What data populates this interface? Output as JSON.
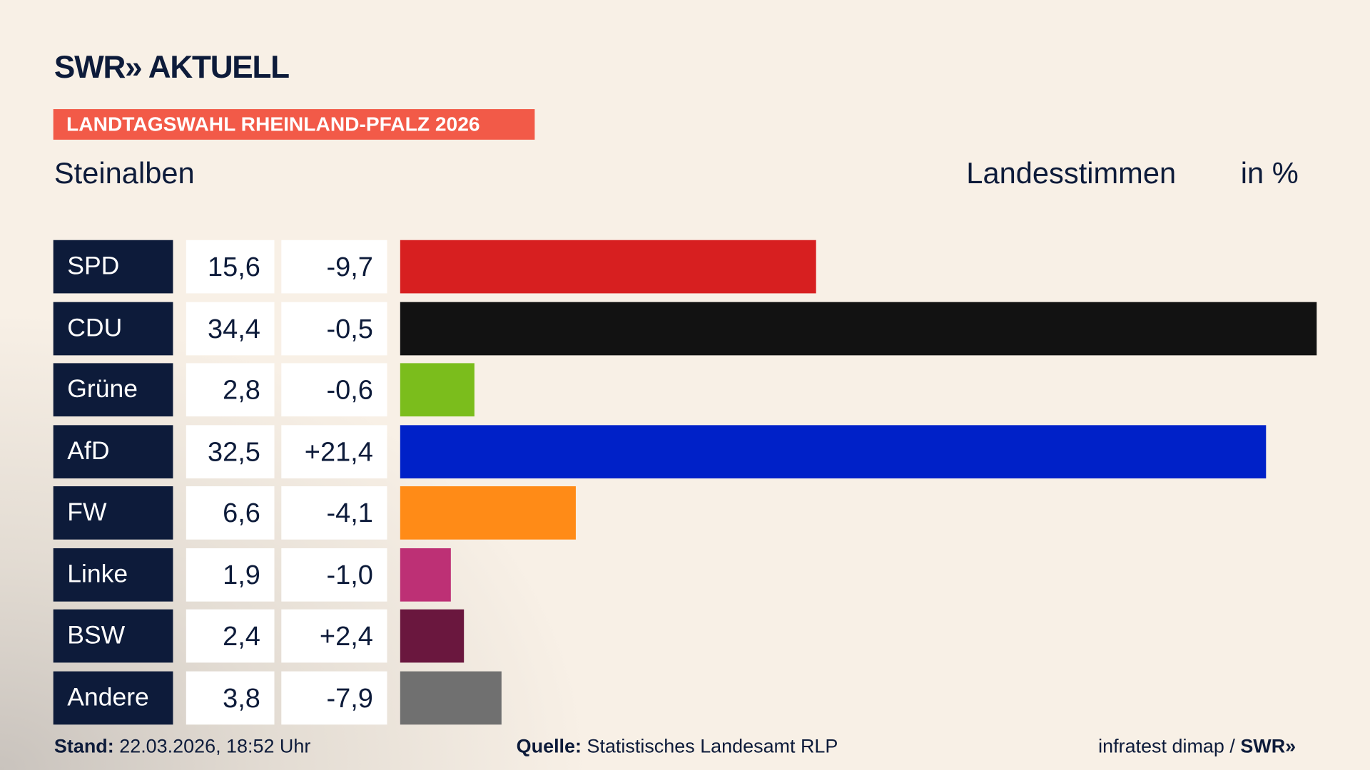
{
  "header": {
    "logo": "SWR» AKTUELL",
    "tag": "LANDTAGSWAHL RHEINLAND-PFALZ 2026",
    "region": "Steinalben",
    "vote_type": "Landesstimmen",
    "unit": "in %"
  },
  "chart_data": {
    "type": "bar",
    "orientation": "horizontal",
    "categories": [
      "SPD",
      "CDU",
      "Grüne",
      "AfD",
      "FW",
      "Linke",
      "BSW",
      "Andere"
    ],
    "values": [
      15.6,
      34.4,
      2.8,
      32.5,
      6.6,
      1.9,
      2.4,
      3.8
    ],
    "value_labels": [
      "15,6",
      "34,4",
      "2,8",
      "32,5",
      "6,6",
      "1,9",
      "2,4",
      "3,8"
    ],
    "changes": [
      -9.7,
      -0.5,
      -0.6,
      21.4,
      -4.1,
      -1.0,
      2.4,
      -7.9
    ],
    "change_labels": [
      "-9,7",
      "-0,5",
      "-0,6",
      "+21,4",
      "-4,1",
      "-1,0",
      "+2,4",
      "-7,9"
    ],
    "colors": [
      "#d71f20",
      "#121212",
      "#7bbd1c",
      "#0021c8",
      "#ff8b17",
      "#bd3075",
      "#6a173e",
      "#707070"
    ],
    "xlim": [
      0,
      34.4
    ]
  },
  "footer": {
    "stand_label": "Stand:",
    "stand_value": "22.03.2026, 18:52 Uhr",
    "source_label": "Quelle:",
    "source_value": "Statistisches Landesamt RLP",
    "credit": "infratest dimap / ",
    "credit_logo": "SWR»"
  }
}
